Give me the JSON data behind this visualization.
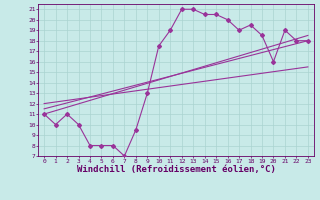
{
  "title": "",
  "xlabel": "Windchill (Refroidissement éolien,°C)",
  "ylabel": "",
  "bg_color": "#c8eae8",
  "line_color": "#993399",
  "grid_color": "#aad4d0",
  "xlim": [
    -0.5,
    23.5
  ],
  "ylim": [
    7,
    21.5
  ],
  "xticks": [
    0,
    1,
    2,
    3,
    4,
    5,
    6,
    7,
    8,
    9,
    10,
    11,
    12,
    13,
    14,
    15,
    16,
    17,
    18,
    19,
    20,
    21,
    22,
    23
  ],
  "yticks": [
    7,
    8,
    9,
    10,
    11,
    12,
    13,
    14,
    15,
    16,
    17,
    18,
    19,
    20,
    21
  ],
  "jagged_x": [
    0,
    1,
    2,
    3,
    4,
    5,
    6,
    7,
    8,
    9,
    10,
    11,
    12,
    13,
    14,
    15,
    16,
    17,
    18,
    19,
    20,
    21,
    22,
    23
  ],
  "jagged_y": [
    11.0,
    10.0,
    11.0,
    10.0,
    8.0,
    8.0,
    8.0,
    7.0,
    9.5,
    13.0,
    17.5,
    19.0,
    21.0,
    21.0,
    20.5,
    20.5,
    20.0,
    19.0,
    19.5,
    18.5,
    16.0,
    19.0,
    18.0,
    18.0
  ],
  "line1_x": [
    0,
    23
  ],
  "line1_y": [
    11.0,
    18.5
  ],
  "line2_x": [
    0,
    23
  ],
  "line2_y": [
    11.5,
    18.0
  ],
  "line3_x": [
    0,
    23
  ],
  "line3_y": [
    12.0,
    15.5
  ],
  "font_color": "#660066",
  "tick_fontsize": 4.5,
  "xlabel_fontsize": 6.5,
  "marker": "D",
  "marker_size": 2,
  "line_width": 0.8
}
